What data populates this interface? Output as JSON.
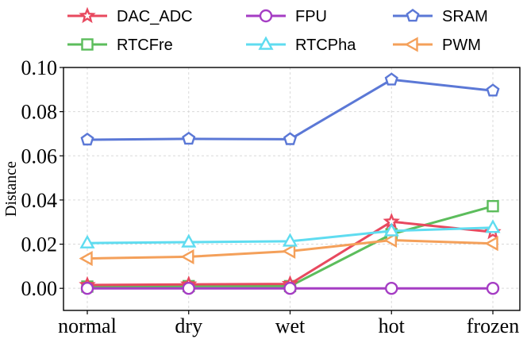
{
  "chart_data": {
    "type": "line",
    "title": "",
    "xlabel": "",
    "ylabel": "Distance",
    "categories": [
      "normal",
      "dry",
      "wet",
      "hot",
      "frozen"
    ],
    "ylim": [
      -0.01,
      0.1
    ],
    "yticks": [
      "0.00",
      "0.02",
      "0.04",
      "0.06",
      "0.08",
      "0.10"
    ],
    "grid": true,
    "legend_position": "top",
    "series": [
      {
        "name": "DAC_ADC",
        "marker": "star",
        "color": "#e8495f",
        "values": [
          0.0015,
          0.0018,
          0.002,
          0.0302,
          0.0255
        ]
      },
      {
        "name": "FPU",
        "marker": "circle",
        "color": "#a53dc4",
        "values": [
          0.0,
          0.0,
          0.0,
          0.0,
          0.0
        ]
      },
      {
        "name": "SRAM",
        "marker": "pentagon",
        "color": "#5b78d6",
        "values": [
          0.0673,
          0.0677,
          0.0675,
          0.0945,
          0.0895
        ]
      },
      {
        "name": "RTCFre",
        "marker": "square",
        "color": "#5cbd5c",
        "values": [
          0.0008,
          0.001,
          0.001,
          0.0245,
          0.0372
        ]
      },
      {
        "name": "RTCPha",
        "marker": "triangle",
        "color": "#5fdcf0",
        "values": [
          0.0205,
          0.0209,
          0.0213,
          0.026,
          0.0275
        ]
      },
      {
        "name": "PWM",
        "marker": "triangle-left",
        "color": "#f4a05a",
        "values": [
          0.0135,
          0.0143,
          0.0168,
          0.0218,
          0.0203
        ]
      }
    ]
  }
}
